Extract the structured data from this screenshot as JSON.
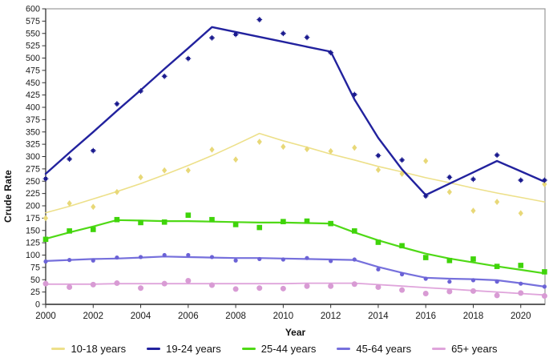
{
  "chart_data": {
    "type": "line",
    "title": "",
    "xlabel": "Year",
    "ylabel": "Crude Rate",
    "grid": false,
    "legend_position": "bottom",
    "xlim": [
      2000,
      2021
    ],
    "ylim": [
      0,
      600
    ],
    "y_tick_step": 25,
    "y_ticks": [
      0,
      25,
      50,
      75,
      100,
      125,
      150,
      175,
      200,
      225,
      250,
      275,
      300,
      325,
      350,
      375,
      400,
      425,
      450,
      475,
      500,
      525,
      550,
      575,
      600
    ],
    "x_tick_labels": [
      "2000",
      "2002",
      "2004",
      "2006",
      "2008",
      "2010",
      "2012",
      "2014",
      "2016",
      "2018",
      "2020"
    ],
    "x_years": [
      2000,
      2001,
      2002,
      2003,
      2004,
      2005,
      2006,
      2007,
      2008,
      2009,
      2010,
      2011,
      2012,
      2013,
      2014,
      2015,
      2016,
      2017,
      2018,
      2019,
      2020,
      2021
    ],
    "series": [
      {
        "name": "10-18 years",
        "line_color": "#EDE08A",
        "marker_color": "#E8D878",
        "marker": "diamond",
        "line_width": 1.6,
        "scatter": [
          175,
          205,
          198,
          228,
          258,
          272,
          272,
          314,
          294,
          330,
          320,
          315,
          311,
          318,
          273,
          265,
          291,
          228,
          190,
          208,
          185,
          244
        ],
        "trend": [
          186,
          199,
          214,
          229,
          245,
          263,
          282,
          302,
          324,
          347,
          332,
          319,
          305,
          293,
          280,
          269,
          257,
          247,
          236,
          226,
          217,
          208
        ]
      },
      {
        "name": "19-24 years",
        "line_color": "#22229E",
        "marker_color": "#1B1B8F",
        "marker": "square-cross",
        "line_width": 2.4,
        "scatter": [
          255,
          295,
          312,
          407,
          433,
          463,
          499,
          541,
          548,
          578,
          550,
          542,
          511,
          426,
          302,
          293,
          220,
          258,
          254,
          303,
          252,
          252
        ],
        "trend": [
          265,
          308,
          350,
          393,
          435,
          478,
          520,
          563,
          553,
          543,
          533,
          523,
          513,
          416,
          338,
          274,
          222,
          245,
          268,
          291,
          270,
          249
        ]
      },
      {
        "name": "25-44 years",
        "line_color": "#4FD916",
        "marker_color": "#3FD40A",
        "marker": "square",
        "line_width": 2.2,
        "scatter": [
          132,
          149,
          152,
          172,
          166,
          167,
          181,
          172,
          162,
          156,
          168,
          169,
          164,
          149,
          126,
          119,
          95,
          89,
          92,
          77,
          79,
          66
        ],
        "trend": [
          133,
          146,
          158,
          171,
          170,
          169,
          169,
          168,
          167,
          166,
          166,
          165,
          164,
          146,
          130,
          116,
          103,
          93,
          85,
          77,
          70,
          63
        ]
      },
      {
        "name": "45-64 years",
        "line_color": "#7670DC",
        "marker_color": "#6B62D6",
        "marker": "circle-small",
        "line_width": 2.2,
        "scatter": [
          87,
          90,
          89,
          95,
          96,
          100,
          100,
          96,
          89,
          92,
          91,
          94,
          88,
          91,
          71,
          61,
          52,
          46,
          49,
          46,
          42,
          36
        ],
        "trend": [
          88,
          90,
          92,
          93,
          95,
          97,
          96,
          95,
          94,
          94,
          93,
          92,
          91,
          90,
          76,
          64,
          54,
          52,
          51,
          49,
          43,
          36
        ]
      },
      {
        "name": "65+ years",
        "line_color": "#DFA4DB",
        "marker_color": "#D89BD4",
        "marker": "circle",
        "line_width": 1.8,
        "scatter": [
          42,
          35,
          40,
          43,
          33,
          42,
          48,
          39,
          31,
          33,
          32,
          37,
          37,
          41,
          35,
          29,
          22,
          26,
          27,
          18,
          23,
          17
        ],
        "trend": [
          41,
          41,
          41,
          42,
          42,
          42,
          42,
          42,
          42,
          42,
          42,
          43,
          43,
          43,
          40,
          37,
          34,
          31,
          28,
          25,
          22,
          19
        ]
      }
    ],
    "axis_colors": {
      "box": "#999999",
      "axis": "#4a4a4a",
      "tick": "#333333",
      "label": "#1a1a1a"
    }
  }
}
